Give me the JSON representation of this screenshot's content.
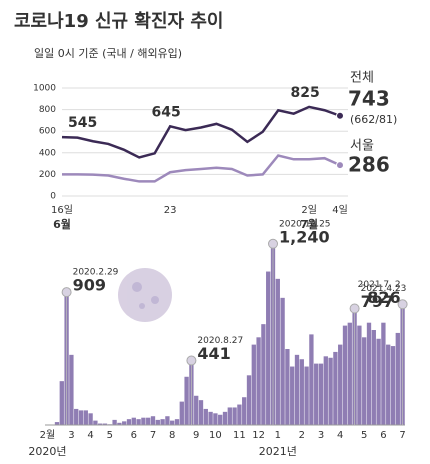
{
  "chart_data": [
    {
      "type": "line",
      "title": "코로나19 신규 확진자 추이",
      "subtitle": "일일 0시 기준 (국내 / 해외유입)",
      "categories": [
        "16일",
        null,
        null,
        null,
        null,
        null,
        null,
        "23",
        null,
        null,
        null,
        null,
        null,
        null,
        null,
        null,
        "2일",
        null,
        "4일"
      ],
      "month_labels": [
        {
          "label": "6월",
          "index": 0
        },
        {
          "label": "7월",
          "index": 16
        }
      ],
      "series": [
        {
          "name": "전체",
          "color": "#3b2a55",
          "values": [
            545,
            540,
            507,
            482,
            429,
            357,
            395,
            645,
            610,
            634,
            668,
            614,
            501,
            595,
            794,
            762,
            825,
            794,
            743
          ],
          "breakdown": "(662/81)"
        },
        {
          "name": "서울",
          "color": "#9d89bb",
          "values": [
            200,
            200,
            198,
            190,
            160,
            135,
            135,
            220,
            240,
            250,
            262,
            250,
            190,
            200,
            375,
            340,
            340,
            350,
            286
          ]
        }
      ],
      "labeled_points": [
        0,
        7,
        16
      ],
      "ylim": [
        0,
        1000
      ],
      "yticks": [
        0,
        200,
        400,
        600,
        800,
        1000
      ],
      "grid": true
    },
    {
      "type": "bar",
      "color": "#8f7db3",
      "categories": [
        "2월",
        null,
        null,
        null,
        null,
        "3",
        null,
        null,
        null,
        "4",
        null,
        null,
        null,
        "5",
        null,
        null,
        null,
        null,
        "6",
        null,
        null,
        null,
        "7",
        null,
        null,
        null,
        "8",
        null,
        null,
        null,
        null,
        "9",
        null,
        null,
        null,
        "10",
        null,
        null,
        null,
        null,
        "11",
        null,
        null,
        null,
        "12",
        null,
        null,
        null,
        "1",
        null,
        null,
        null,
        null,
        "2",
        null,
        null,
        null,
        "3",
        null,
        null,
        null,
        "4",
        null,
        null,
        null,
        null,
        "5",
        null,
        null,
        null,
        "6",
        null,
        null,
        null,
        "7"
      ],
      "values": [
        2,
        1,
        20,
        300,
        909,
        480,
        110,
        100,
        100,
        80,
        30,
        10,
        10,
        5,
        35,
        15,
        25,
        40,
        50,
        40,
        50,
        50,
        60,
        35,
        40,
        60,
        30,
        40,
        160,
        330,
        441,
        200,
        170,
        110,
        90,
        80,
        70,
        90,
        120,
        120,
        140,
        190,
        340,
        550,
        600,
        690,
        1050,
        1240,
        1000,
        870,
        520,
        400,
        480,
        450,
        400,
        620,
        420,
        420,
        470,
        460,
        500,
        550,
        680,
        700,
        797,
        680,
        600,
        700,
        650,
        590,
        700,
        550,
        540,
        630,
        826
      ],
      "years": [
        {
          "label": "2020년",
          "index": 0
        },
        {
          "label": "2021년",
          "index": 48
        }
      ],
      "annotations": [
        {
          "index": 4,
          "date": "2020.2.29"
        },
        {
          "index": 30,
          "date": "2020.8.27"
        },
        {
          "index": 47,
          "date": "2020.12.25",
          "label": "1,240"
        },
        {
          "index": 64,
          "date": "2021.4.23"
        },
        {
          "index": 74,
          "date": "2021.7. 2"
        }
      ],
      "ylim": [
        0,
        1300
      ]
    }
  ]
}
